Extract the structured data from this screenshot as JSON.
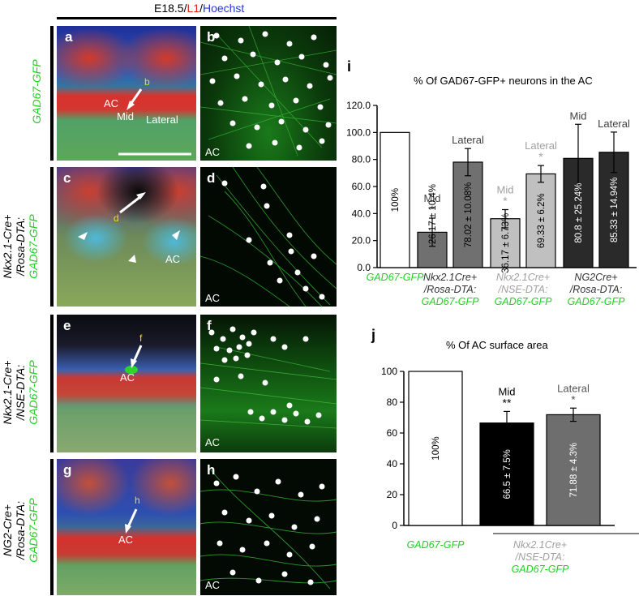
{
  "header": {
    "stage": "E18.5/",
    "l1": "L1",
    "slash": "/",
    "hoechst": "Hoechst"
  },
  "row_labels": [
    {
      "line1": "GAD67-GFP",
      "line2": "",
      "line3": ""
    },
    {
      "line1": "Nkx2.1-Cre+",
      "line2": "/Rosa-DTA:",
      "line3": "GAD67-GFP"
    },
    {
      "line1": "Nkx2.1-Cre+",
      "line2": "/NSE-DTA:",
      "line3": "GAD67-GFP"
    },
    {
      "line1": "NG2-Cre+",
      "line2": "/Rosa-DTA:",
      "line3": "GAD67-GFP"
    }
  ],
  "panels": {
    "a": {
      "letter": "a",
      "labels": [
        "AC",
        "Mid",
        "Lateral"
      ],
      "yellow": "b"
    },
    "b": {
      "letter": "b",
      "label": "AC"
    },
    "c": {
      "letter": "c",
      "labels": [
        "AC"
      ],
      "yellow": "d"
    },
    "d": {
      "letter": "d",
      "label": "AC"
    },
    "e": {
      "letter": "e",
      "labels": [
        "AC"
      ],
      "yellow": "f"
    },
    "f": {
      "letter": "f",
      "label": "AC"
    },
    "g": {
      "letter": "g",
      "labels": [
        "AC"
      ],
      "yellow": "h"
    },
    "h": {
      "letter": "h",
      "label": "AC"
    }
  },
  "chart_i_letter": "i",
  "chart_j_letter": "j",
  "chart_data": [
    {
      "type": "bar",
      "title": "% Of GAD67-GFP+ neurons in the AC",
      "ylim": [
        0,
        120
      ],
      "yticks": [
        "0.0",
        "20.0",
        "40.0",
        "60.0",
        "80.0",
        "100.0",
        "120.0"
      ],
      "bars": [
        {
          "value": 100,
          "error": 0,
          "color": "#ffffff",
          "label": "100%",
          "top": "",
          "star": "",
          "labelColor": "#000000",
          "annoColor": "#000000"
        },
        {
          "value": 26.17,
          "error": 10.4,
          "color": "#707070",
          "label": "26.17 ± 10.4%",
          "top": "Mid",
          "star": "*",
          "labelColor": "#000000",
          "annoColor": "#404040",
          "labelAbove": true
        },
        {
          "value": 78.02,
          "error": 10.08,
          "color": "#707070",
          "label": "78.02 ± 10.08%",
          "top": "Lateral",
          "star": "",
          "labelColor": "#000000",
          "annoColor": "#404040"
        },
        {
          "value": 36.17,
          "error": 6.73,
          "color": "#c0c0c0",
          "label": "36.17 ± 6.73%",
          "top": "Mid",
          "star": "*",
          "labelColor": "#000000",
          "annoColor": "#a0a0a0"
        },
        {
          "value": 69.33,
          "error": 6.2,
          "color": "#c0c0c0",
          "label": "69.33 ± 6.2%",
          "top": "Lateral",
          "star": "*",
          "labelColor": "#000000",
          "annoColor": "#a0a0a0"
        },
        {
          "value": 80.8,
          "error": 25.24,
          "color": "#2a2a2a",
          "label": "80.8 ± 25.24%",
          "top": "Mid",
          "star": "",
          "labelColor": "#ffffff",
          "annoColor": "#404040"
        },
        {
          "value": 85.33,
          "error": 14.94,
          "color": "#2a2a2a",
          "label": "85.33 ± 14.94%",
          "top": "Lateral",
          "star": "",
          "labelColor": "#ffffff",
          "annoColor": "#404040"
        }
      ],
      "groups": [
        {
          "lines": [
            "GAD67-GFP"
          ],
          "colors": [
            "#1fd11f"
          ]
        },
        {
          "lines": [
            "Nkx2.1Cre+",
            "/Rosa-DTA:",
            "GAD67-GFP"
          ],
          "colors": [
            "#333333",
            "#333333",
            "#1fd11f"
          ]
        },
        {
          "lines": [
            "Nkx2.1Cre+",
            "/NSE-DTA:",
            "GAD67-GFP"
          ],
          "colors": [
            "#a0a0a0",
            "#a0a0a0",
            "#1fd11f"
          ]
        },
        {
          "lines": [
            "NG2Cre+",
            "/Rosa-DTA:",
            "GAD67-GFP"
          ],
          "colors": [
            "#333333",
            "#333333",
            "#1fd11f"
          ]
        }
      ]
    },
    {
      "type": "bar",
      "title": "% Of AC surface area",
      "ylim": [
        0,
        100
      ],
      "yticks": [
        "0",
        "20",
        "40",
        "60",
        "80",
        "100"
      ],
      "bars": [
        {
          "value": 100,
          "error": 0,
          "color": "#ffffff",
          "label": "100%",
          "top": "",
          "star": "",
          "labelColor": "#000000"
        },
        {
          "value": 66.5,
          "error": 7.5,
          "color": "#000000",
          "label": "66.5 ± 7.5%",
          "top": "Mid",
          "star": "**",
          "labelColor": "#ffffff",
          "annoColor": "#000000"
        },
        {
          "value": 71.88,
          "error": 4.3,
          "color": "#6e6e6e",
          "label": "71.88 ± 4.3%",
          "top": "Lateral",
          "star": "*",
          "labelColor": "#ffffff",
          "annoColor": "#555555"
        }
      ],
      "groups": [
        {
          "lines": [
            "GAD67-GFP"
          ],
          "colors": [
            "#1fd11f"
          ]
        },
        {
          "lines": [
            "Nkx2.1Cre+",
            "/NSE-DTA:",
            "GAD67-GFP"
          ],
          "colors": [
            "#a0a0a0",
            "#a0a0a0",
            "#1fd11f"
          ]
        }
      ]
    }
  ]
}
